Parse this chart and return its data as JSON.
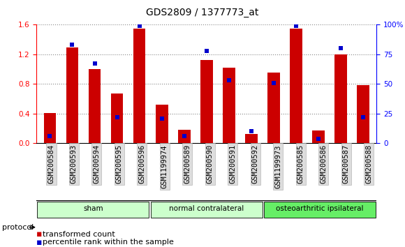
{
  "title": "GDS2809 / 1377773_at",
  "samples": [
    "GSM200584",
    "GSM200593",
    "GSM200594",
    "GSM200595",
    "GSM200596",
    "GSM1199974",
    "GSM200589",
    "GSM200590",
    "GSM200591",
    "GSM200592",
    "GSM1199973",
    "GSM200585",
    "GSM200586",
    "GSM200587",
    "GSM200588"
  ],
  "red_values": [
    0.41,
    1.29,
    1.0,
    0.67,
    1.55,
    0.52,
    0.18,
    1.12,
    1.02,
    0.13,
    0.95,
    1.55,
    0.17,
    1.2,
    0.78
  ],
  "blue_percentile": [
    6,
    83,
    67,
    22,
    99,
    21,
    6,
    78,
    53,
    10,
    51,
    99,
    4,
    80,
    22
  ],
  "groups": [
    {
      "label": "sham",
      "start": 0,
      "end": 5,
      "color": "#ccffcc"
    },
    {
      "label": "normal contralateral",
      "start": 5,
      "end": 10,
      "color": "#ccffcc"
    },
    {
      "label": "osteoarthritic ipsilateral",
      "start": 10,
      "end": 15,
      "color": "#66ee66"
    }
  ],
  "ylim_left": [
    0,
    1.6
  ],
  "ylim_right": [
    0,
    100
  ],
  "yticks_left": [
    0,
    0.4,
    0.8,
    1.2,
    1.6
  ],
  "yticks_right": [
    0,
    25,
    50,
    75,
    100
  ],
  "bar_color_red": "#cc0000",
  "bar_color_blue": "#0000cc",
  "bar_width": 0.55,
  "background_color": "#ffffff",
  "grid_color": "#888888",
  "protocol_label": "protocol",
  "legend_red": "transformed count",
  "legend_blue": "percentile rank within the sample",
  "title_fontsize": 10,
  "tick_fontsize": 7.5,
  "legend_fontsize": 8
}
